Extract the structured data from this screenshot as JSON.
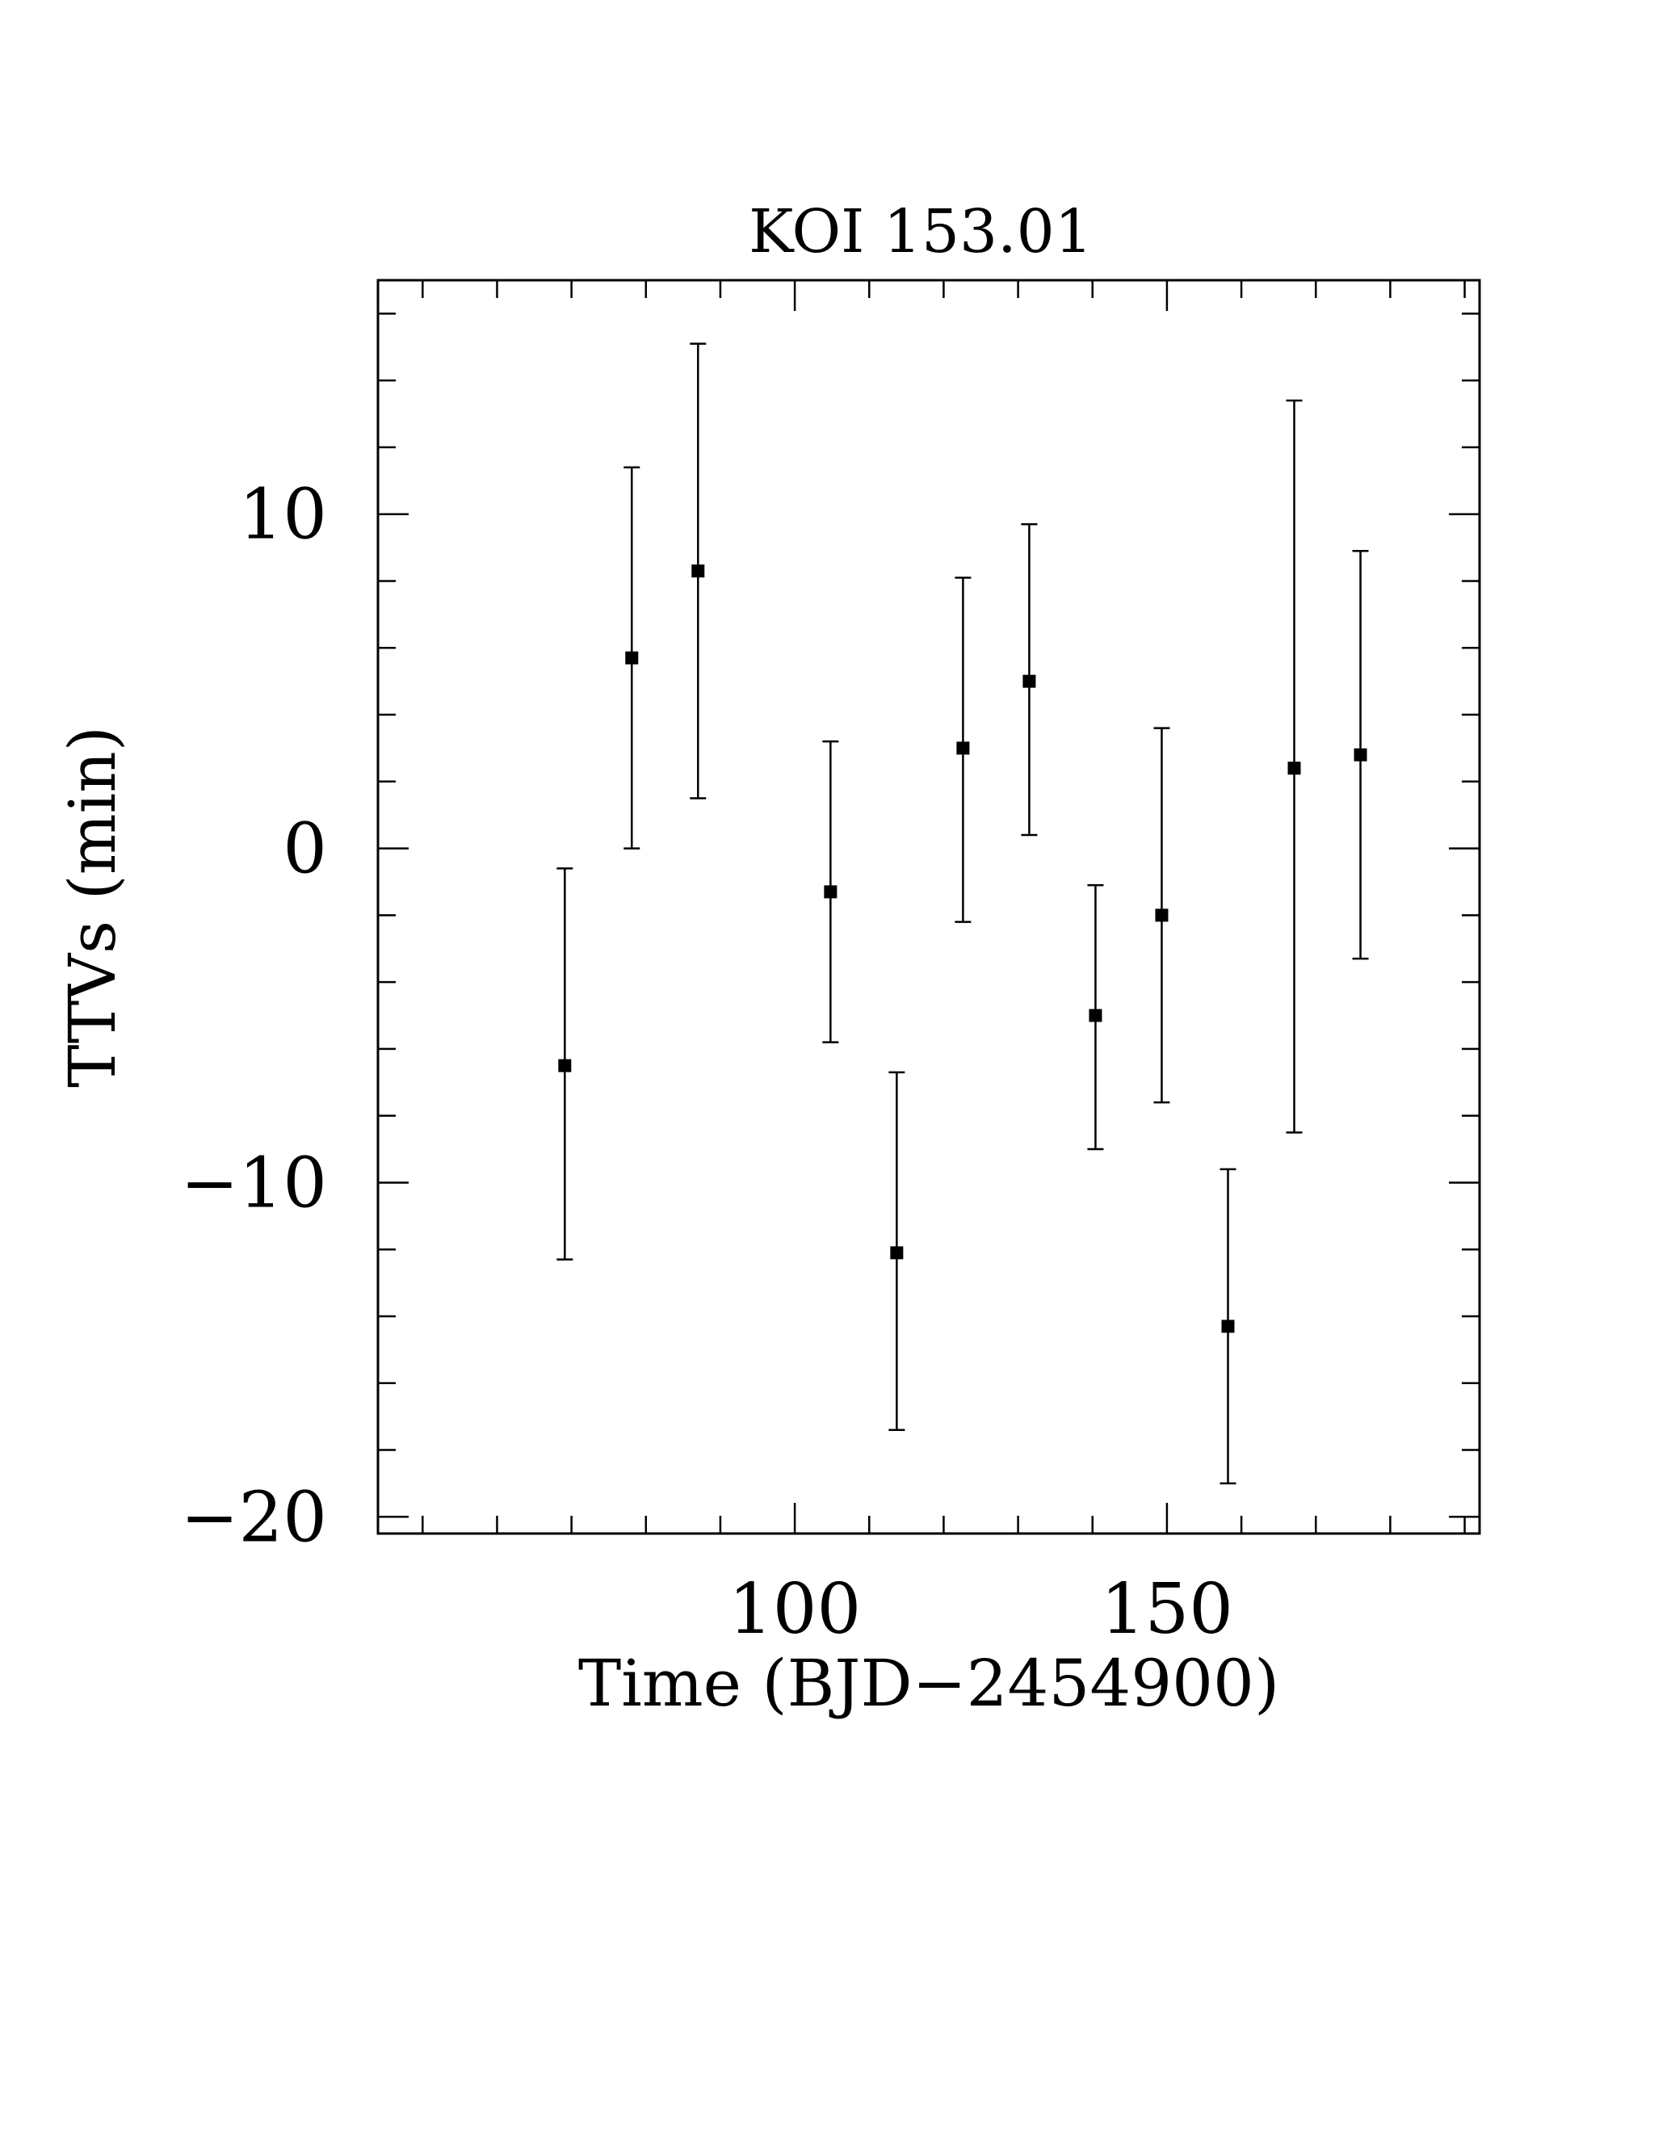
{
  "chart_data": {
    "type": "scatter",
    "title": "KOI 153.01",
    "xlabel": "Time (BJD−2454900)",
    "ylabel": "TTVs (min)",
    "xlim": [
      44,
      192
    ],
    "ylim": [
      -20.5,
      17
    ],
    "xticks_major": [
      100,
      150
    ],
    "xticks_minor": [
      50,
      60,
      70,
      80,
      90,
      110,
      120,
      130,
      140,
      160,
      170,
      180,
      190
    ],
    "yticks_major": [
      -20,
      -10,
      0,
      10
    ],
    "yticks_minor": [
      -18,
      -16,
      -14,
      -12,
      -8,
      -6,
      -4,
      -2,
      2,
      4,
      6,
      8,
      12,
      14,
      16
    ],
    "xtick_labels": [
      "100",
      "150"
    ],
    "ytick_labels": [
      "−20",
      "−10",
      "0",
      "10"
    ],
    "grid": false,
    "marker": "filled-square",
    "series": [
      {
        "points": [
          {
            "x": 69.1,
            "y": -6.5,
            "yerr_low": 5.8,
            "yerr_high": 5.9
          },
          {
            "x": 78.1,
            "y": 5.7,
            "yerr_low": 5.7,
            "yerr_high": 5.7
          },
          {
            "x": 87.0,
            "y": 8.3,
            "yerr_low": 6.8,
            "yerr_high": 6.8
          },
          {
            "x": 104.8,
            "y": -1.3,
            "yerr_low": 4.5,
            "yerr_high": 4.5
          },
          {
            "x": 113.7,
            "y": -12.1,
            "yerr_low": 5.3,
            "yerr_high": 5.4
          },
          {
            "x": 122.6,
            "y": 3.0,
            "yerr_low": 5.2,
            "yerr_high": 5.1
          },
          {
            "x": 131.5,
            "y": 5.0,
            "yerr_low": 4.6,
            "yerr_high": 4.7
          },
          {
            "x": 140.4,
            "y": -5.0,
            "yerr_low": 4.0,
            "yerr_high": 3.9
          },
          {
            "x": 149.3,
            "y": -2.0,
            "yerr_low": 5.6,
            "yerr_high": 5.6
          },
          {
            "x": 158.2,
            "y": -14.3,
            "yerr_low": 4.7,
            "yerr_high": 4.7
          },
          {
            "x": 167.1,
            "y": 2.4,
            "yerr_low": 10.9,
            "yerr_high": 11.0
          },
          {
            "x": 176.0,
            "y": 2.8,
            "yerr_low": 6.1,
            "yerr_high": 6.1
          }
        ]
      }
    ]
  }
}
